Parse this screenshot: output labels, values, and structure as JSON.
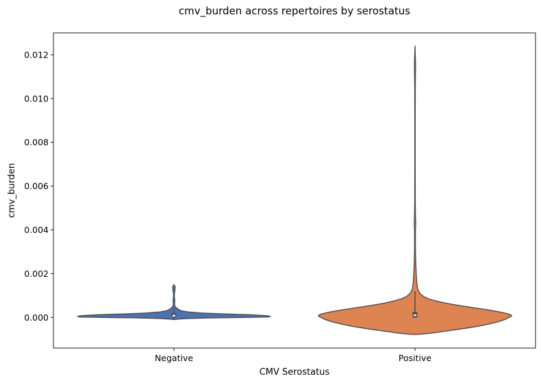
{
  "chart_data": {
    "type": "violin",
    "title": "cmv_burden across repertoires by serostatus",
    "xlabel": "CMV Serostatus",
    "ylabel": "cmv_burden",
    "categories": [
      "Negative",
      "Positive"
    ],
    "ylim": [
      -0.0014,
      0.013
    ],
    "yticks": [
      0.0,
      0.002,
      0.004,
      0.006,
      0.008,
      0.01,
      0.012
    ],
    "ytick_labels": [
      "0.000",
      "0.002",
      "0.004",
      "0.006",
      "0.008",
      "0.010",
      "0.012"
    ],
    "grid": false,
    "legend": "none",
    "series": [
      {
        "category": "Negative",
        "color": "#4c72b0",
        "density": [
          [
            -0.0001,
            0.0
          ],
          [
            -8e-05,
            0.04
          ],
          [
            -5e-05,
            0.14
          ],
          [
            -2e-05,
            0.4
          ],
          [
            0.0,
            0.75
          ],
          [
            2e-05,
            0.98
          ],
          [
            5e-05,
            1.0
          ],
          [
            8e-05,
            0.96
          ],
          [
            0.00012,
            0.8
          ],
          [
            0.00016,
            0.52
          ],
          [
            0.0002,
            0.3
          ],
          [
            0.00025,
            0.15
          ],
          [
            0.0003,
            0.08
          ],
          [
            0.00036,
            0.05
          ],
          [
            0.00042,
            0.03
          ],
          [
            0.0005,
            0.012
          ],
          [
            0.0006,
            0.006
          ],
          [
            0.00075,
            0.009
          ],
          [
            0.00085,
            0.007
          ],
          [
            0.00095,
            0.004
          ],
          [
            0.0011,
            0.005
          ],
          [
            0.00125,
            0.011
          ],
          [
            0.0014,
            0.013
          ],
          [
            0.0015,
            0.0
          ]
        ],
        "q1": 3e-05,
        "median": 8e-05,
        "q3": 0.00016,
        "whisker_low": -8e-05,
        "whisker_high": 0.00045
      },
      {
        "category": "Positive",
        "color": "#dd8452",
        "density": [
          [
            -0.00078,
            0.0
          ],
          [
            -0.00076,
            0.08
          ],
          [
            -0.0007,
            0.2
          ],
          [
            -0.0006,
            0.36
          ],
          [
            -0.0005,
            0.52
          ],
          [
            -0.0004,
            0.66
          ],
          [
            -0.0003,
            0.77
          ],
          [
            -0.0002,
            0.86
          ],
          [
            -0.0001,
            0.93
          ],
          [
            0.0,
            0.975
          ],
          [
            5e-05,
            1.0
          ],
          [
            0.0001,
            1.0
          ],
          [
            0.00016,
            0.97
          ],
          [
            0.00025,
            0.88
          ],
          [
            0.00035,
            0.75
          ],
          [
            0.00045,
            0.6
          ],
          [
            0.00055,
            0.45
          ],
          [
            0.00065,
            0.32
          ],
          [
            0.00075,
            0.22
          ],
          [
            0.00085,
            0.14
          ],
          [
            0.00095,
            0.09
          ],
          [
            0.0011,
            0.05
          ],
          [
            0.0013,
            0.028
          ],
          [
            0.0016,
            0.018
          ],
          [
            0.002,
            0.013
          ],
          [
            0.0025,
            0.008
          ],
          [
            0.003,
            0.005
          ],
          [
            0.0035,
            0.004
          ],
          [
            0.004,
            0.005
          ],
          [
            0.0043,
            0.008
          ],
          [
            0.0046,
            0.005
          ],
          [
            0.0052,
            0.003
          ],
          [
            0.007,
            0.002
          ],
          [
            0.009,
            0.002
          ],
          [
            0.0105,
            0.003
          ],
          [
            0.0112,
            0.005
          ],
          [
            0.0116,
            0.006
          ],
          [
            0.012,
            0.003
          ],
          [
            0.0124,
            0.0
          ]
        ],
        "q1": 0.0,
        "median": 0.0001,
        "q3": 0.00025,
        "whisker_low": -2e-05,
        "whisker_high": 0.0012
      }
    ]
  }
}
